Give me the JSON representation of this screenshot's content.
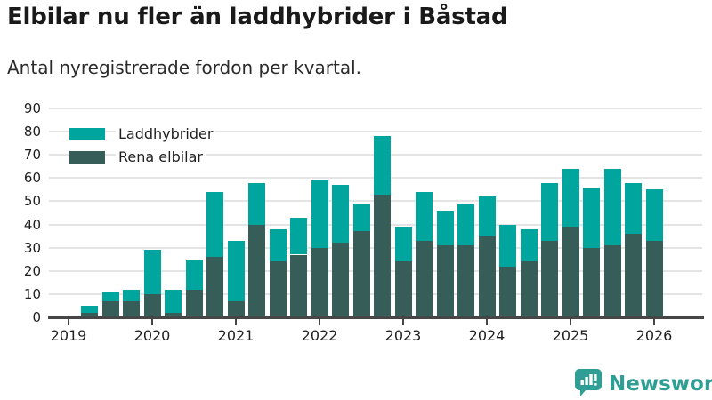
{
  "header": {
    "title": "Elbilar nu fler än laddhybrider i Båstad",
    "subtitle": "Antal nyregistrerade fordon per kvartal."
  },
  "chart_data": {
    "type": "bar",
    "stacked": true,
    "title": "Elbilar nu fler än laddhybrider i Båstad",
    "subtitle": "Antal nyregistrerade fordon per kvartal.",
    "ylim": [
      0,
      90
    ],
    "y_ticks": [
      0,
      10,
      20,
      30,
      40,
      50,
      60,
      70,
      80,
      90
    ],
    "grid": "horizontal",
    "legend_position": "top-left-inside",
    "x_tick_labels": [
      "2019",
      "2020",
      "2021",
      "2022",
      "2023",
      "2024",
      "2025",
      "2026"
    ],
    "x_quarters": [
      "2019 Q1",
      "2019 Q2",
      "2019 Q3",
      "2019 Q4",
      "2020 Q1",
      "2020 Q2",
      "2020 Q3",
      "2020 Q4",
      "2021 Q1",
      "2021 Q2",
      "2021 Q3",
      "2021 Q4",
      "2022 Q1",
      "2022 Q2",
      "2022 Q3",
      "2022 Q4",
      "2023 Q1",
      "2023 Q2",
      "2023 Q3",
      "2023 Q4",
      "2024 Q1",
      "2024 Q2",
      "2024 Q3",
      "2024 Q4",
      "2025 Q1",
      "2025 Q2",
      "2025 Q3",
      "2025 Q4",
      "2026 Q1"
    ],
    "series": [
      {
        "name": "Laddhybrider",
        "color": "#00a59e",
        "stack_position": "top",
        "values": [
          0,
          3,
          4,
          5,
          19,
          10,
          13,
          28,
          26,
          18,
          14,
          16,
          29,
          25,
          12,
          25,
          15,
          21,
          15,
          18,
          17,
          18,
          14,
          25,
          25,
          26,
          33,
          22,
          22
        ]
      },
      {
        "name": "Rena elbilar",
        "color": "#365d57",
        "stack_position": "bottom",
        "values": [
          0,
          2,
          7,
          7,
          10,
          2,
          12,
          26,
          7,
          40,
          24,
          27,
          30,
          32,
          37,
          53,
          24,
          33,
          31,
          31,
          35,
          22,
          24,
          33,
          39,
          30,
          31,
          36,
          33
        ]
      }
    ],
    "totals": [
      0,
      5,
      11,
      12,
      29,
      12,
      25,
      54,
      33,
      58,
      38,
      43,
      59,
      57,
      49,
      78,
      39,
      54,
      46,
      49,
      52,
      40,
      38,
      58,
      64,
      56,
      64,
      58,
      55
    ]
  },
  "footer": {
    "brand": "Newsworthy",
    "brand_color": "#2f9e95"
  },
  "colors": {
    "laddhybrider": "#00a59e",
    "rena_elbilar": "#365d57",
    "gridline": "#e4e4e4",
    "axis": "#464646",
    "background": "#ffffff"
  }
}
